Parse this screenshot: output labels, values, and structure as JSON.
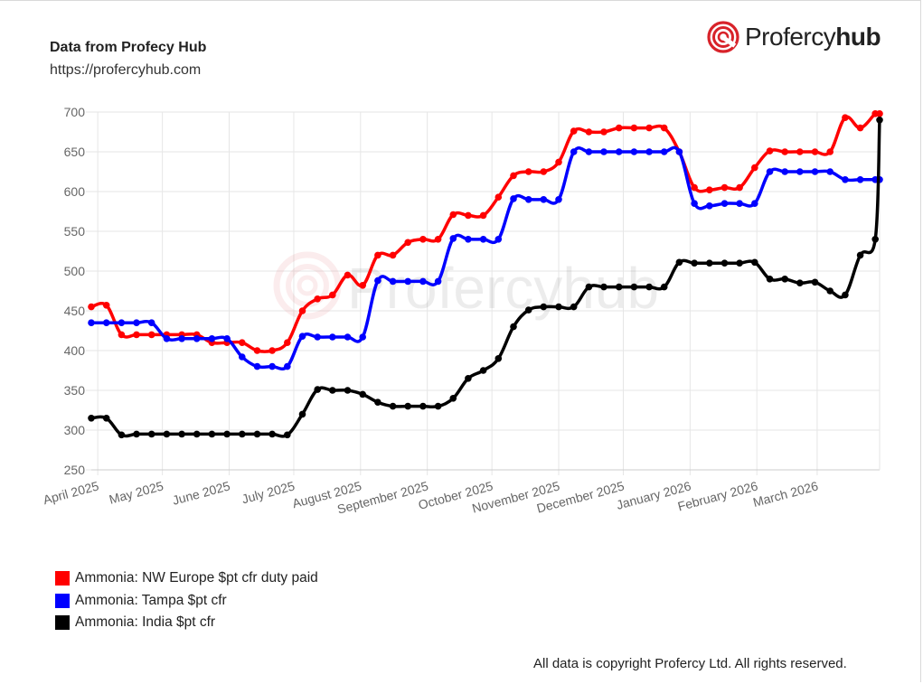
{
  "header": {
    "source_title": "Data from Profecy Hub",
    "source_url": "https://profercyhub.com",
    "brand_light": "Profercy",
    "brand_bold": "hub",
    "brand_color": "#d8232a"
  },
  "watermark": "Profercyhub",
  "footer": {
    "copyright": "All data is copyright Profercy Ltd. All rights reserved."
  },
  "legend": [
    {
      "label": "Ammonia: NW Europe $pt cfr duty paid",
      "color": "#ff0000"
    },
    {
      "label": "Ammonia: Tampa $pt cfr",
      "color": "#0000ff"
    },
    {
      "label": "Ammonia: India $pt cfr",
      "color": "#000000"
    }
  ],
  "chart_data": {
    "type": "line",
    "ylim": [
      250,
      700
    ],
    "yticks": [
      250,
      300,
      350,
      400,
      450,
      500,
      550,
      600,
      650,
      700
    ],
    "xlim": [
      "2025-03-29",
      "2026-03-30"
    ],
    "xticks": [
      {
        "date": "2025-04-01",
        "label": "April 2025"
      },
      {
        "date": "2025-05-01",
        "label": "May 2025"
      },
      {
        "date": "2025-06-01",
        "label": "June 2025"
      },
      {
        "date": "2025-07-01",
        "label": "July 2025"
      },
      {
        "date": "2025-08-01",
        "label": "August 2025"
      },
      {
        "date": "2025-09-01",
        "label": "September 2025"
      },
      {
        "date": "2025-10-01",
        "label": "October 2025"
      },
      {
        "date": "2025-11-01",
        "label": "November 2025"
      },
      {
        "date": "2025-12-01",
        "label": "December 2025"
      },
      {
        "date": "2026-01-01",
        "label": "January 2026"
      },
      {
        "date": "2026-02-01",
        "label": "February 2026"
      },
      {
        "date": "2026-03-01",
        "label": "March 2026"
      }
    ],
    "grid": true,
    "legend_position": "bottom-left",
    "series": [
      {
        "name": "Ammonia: NW Europe $pt cfr duty paid",
        "color": "#ff0000",
        "points": [
          [
            "2025-03-29",
            455
          ],
          [
            "2025-04-05",
            457
          ],
          [
            "2025-04-12",
            420
          ],
          [
            "2025-04-19",
            420
          ],
          [
            "2025-04-26",
            420
          ],
          [
            "2025-05-03",
            420
          ],
          [
            "2025-05-10",
            420
          ],
          [
            "2025-05-17",
            420
          ],
          [
            "2025-05-24",
            410
          ],
          [
            "2025-05-31",
            410
          ],
          [
            "2025-06-07",
            410
          ],
          [
            "2025-06-14",
            400
          ],
          [
            "2025-06-21",
            400
          ],
          [
            "2025-06-28",
            410
          ],
          [
            "2025-07-05",
            450
          ],
          [
            "2025-07-12",
            465
          ],
          [
            "2025-07-19",
            470
          ],
          [
            "2025-07-26",
            495
          ],
          [
            "2025-08-02",
            482
          ],
          [
            "2025-08-09",
            520
          ],
          [
            "2025-08-16",
            520
          ],
          [
            "2025-08-23",
            536
          ],
          [
            "2025-08-30",
            540
          ],
          [
            "2025-09-06",
            540
          ],
          [
            "2025-09-13",
            571
          ],
          [
            "2025-09-20",
            570
          ],
          [
            "2025-09-27",
            570
          ],
          [
            "2025-10-04",
            593
          ],
          [
            "2025-10-11",
            620
          ],
          [
            "2025-10-18",
            625
          ],
          [
            "2025-10-25",
            625
          ],
          [
            "2025-11-01",
            637
          ],
          [
            "2025-11-08",
            676
          ],
          [
            "2025-11-15",
            675
          ],
          [
            "2025-11-22",
            675
          ],
          [
            "2025-11-29",
            680
          ],
          [
            "2025-12-06",
            680
          ],
          [
            "2025-12-13",
            680
          ],
          [
            "2025-12-20",
            680
          ],
          [
            "2025-12-27",
            650
          ],
          [
            "2026-01-03",
            605
          ],
          [
            "2026-01-10",
            602
          ],
          [
            "2026-01-17",
            605
          ],
          [
            "2026-01-24",
            605
          ],
          [
            "2026-01-31",
            630
          ],
          [
            "2026-02-07",
            651
          ],
          [
            "2026-02-14",
            650
          ],
          [
            "2026-02-21",
            650
          ],
          [
            "2026-02-28",
            650
          ],
          [
            "2026-03-07",
            650
          ],
          [
            "2026-03-14",
            693
          ],
          [
            "2026-03-21",
            680
          ],
          [
            "2026-03-28",
            698
          ],
          [
            "2026-03-30",
            698
          ]
        ]
      },
      {
        "name": "Ammonia: Tampa $pt cfr",
        "color": "#0000ff",
        "points": [
          [
            "2025-03-29",
            435
          ],
          [
            "2025-04-05",
            435
          ],
          [
            "2025-04-12",
            435
          ],
          [
            "2025-04-19",
            435
          ],
          [
            "2025-04-26",
            435
          ],
          [
            "2025-05-03",
            415
          ],
          [
            "2025-05-10",
            415
          ],
          [
            "2025-05-17",
            415
          ],
          [
            "2025-05-24",
            415
          ],
          [
            "2025-05-31",
            415
          ],
          [
            "2025-06-07",
            392
          ],
          [
            "2025-06-14",
            380
          ],
          [
            "2025-06-21",
            380
          ],
          [
            "2025-06-28",
            380
          ],
          [
            "2025-07-05",
            418
          ],
          [
            "2025-07-12",
            417
          ],
          [
            "2025-07-19",
            417
          ],
          [
            "2025-07-26",
            417
          ],
          [
            "2025-08-02",
            417
          ],
          [
            "2025-08-09",
            488
          ],
          [
            "2025-08-16",
            487
          ],
          [
            "2025-08-23",
            487
          ],
          [
            "2025-08-30",
            487
          ],
          [
            "2025-09-06",
            487
          ],
          [
            "2025-09-13",
            541
          ],
          [
            "2025-09-20",
            540
          ],
          [
            "2025-09-27",
            540
          ],
          [
            "2025-10-04",
            540
          ],
          [
            "2025-10-11",
            591
          ],
          [
            "2025-10-18",
            590
          ],
          [
            "2025-10-25",
            590
          ],
          [
            "2025-11-01",
            590
          ],
          [
            "2025-11-08",
            650
          ],
          [
            "2025-11-15",
            650
          ],
          [
            "2025-11-22",
            650
          ],
          [
            "2025-11-29",
            650
          ],
          [
            "2025-12-06",
            650
          ],
          [
            "2025-12-13",
            650
          ],
          [
            "2025-12-20",
            650
          ],
          [
            "2025-12-27",
            650
          ],
          [
            "2026-01-03",
            585
          ],
          [
            "2026-01-10",
            582
          ],
          [
            "2026-01-17",
            585
          ],
          [
            "2026-01-24",
            585
          ],
          [
            "2026-01-31",
            585
          ],
          [
            "2026-02-07",
            625
          ],
          [
            "2026-02-14",
            625
          ],
          [
            "2026-02-21",
            625
          ],
          [
            "2026-02-28",
            625
          ],
          [
            "2026-03-07",
            625
          ],
          [
            "2026-03-14",
            615
          ],
          [
            "2026-03-21",
            615
          ],
          [
            "2026-03-28",
            615
          ],
          [
            "2026-03-30",
            615
          ]
        ]
      },
      {
        "name": "Ammonia: India $pt cfr",
        "color": "#000000",
        "points": [
          [
            "2025-03-29",
            315
          ],
          [
            "2025-04-05",
            315
          ],
          [
            "2025-04-12",
            294
          ],
          [
            "2025-04-19",
            295
          ],
          [
            "2025-04-26",
            295
          ],
          [
            "2025-05-03",
            295
          ],
          [
            "2025-05-10",
            295
          ],
          [
            "2025-05-17",
            295
          ],
          [
            "2025-05-24",
            295
          ],
          [
            "2025-05-31",
            295
          ],
          [
            "2025-06-07",
            295
          ],
          [
            "2025-06-14",
            295
          ],
          [
            "2025-06-21",
            295
          ],
          [
            "2025-06-28",
            294
          ],
          [
            "2025-07-05",
            320
          ],
          [
            "2025-07-12",
            351
          ],
          [
            "2025-07-19",
            350
          ],
          [
            "2025-07-26",
            350
          ],
          [
            "2025-08-02",
            345
          ],
          [
            "2025-08-09",
            335
          ],
          [
            "2025-08-16",
            330
          ],
          [
            "2025-08-23",
            330
          ],
          [
            "2025-08-30",
            330
          ],
          [
            "2025-09-06",
            330
          ],
          [
            "2025-09-13",
            340
          ],
          [
            "2025-09-20",
            365
          ],
          [
            "2025-09-27",
            375
          ],
          [
            "2025-10-04",
            390
          ],
          [
            "2025-10-11",
            430
          ],
          [
            "2025-10-18",
            451
          ],
          [
            "2025-10-25",
            455
          ],
          [
            "2025-11-01",
            455
          ],
          [
            "2025-11-08",
            455
          ],
          [
            "2025-11-15",
            480
          ],
          [
            "2025-11-22",
            480
          ],
          [
            "2025-11-29",
            480
          ],
          [
            "2025-12-06",
            480
          ],
          [
            "2025-12-13",
            480
          ],
          [
            "2025-12-20",
            480
          ],
          [
            "2025-12-27",
            511
          ],
          [
            "2026-01-03",
            510
          ],
          [
            "2026-01-10",
            510
          ],
          [
            "2026-01-17",
            510
          ],
          [
            "2026-01-24",
            510
          ],
          [
            "2026-01-31",
            511
          ],
          [
            "2026-02-07",
            490
          ],
          [
            "2026-02-14",
            490
          ],
          [
            "2026-02-21",
            485
          ],
          [
            "2026-02-28",
            486
          ],
          [
            "2026-03-07",
            475
          ],
          [
            "2026-03-14",
            470
          ],
          [
            "2026-03-21",
            520
          ],
          [
            "2026-03-28",
            540
          ],
          [
            "2026-03-30",
            690
          ]
        ]
      }
    ]
  }
}
